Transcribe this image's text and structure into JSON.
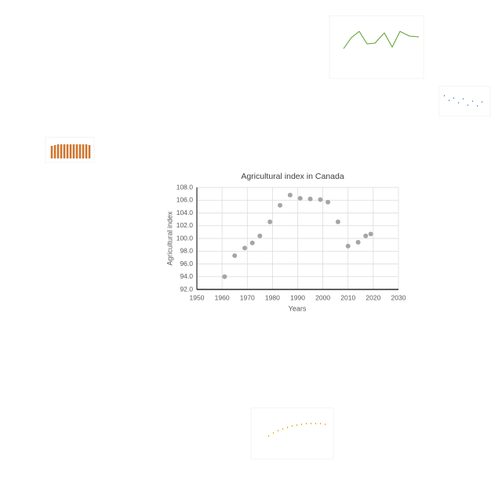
{
  "chart_data": {
    "type": "scatter",
    "title": "Agricultural index in Canada",
    "x_label": "Years",
    "y_label": "Agricultural index",
    "x": [
      1961,
      1965,
      1969,
      1972,
      1975,
      1979,
      1983,
      1987,
      1991,
      1995,
      1999,
      2002,
      2006,
      2010,
      2014,
      2017,
      2019
    ],
    "values": [
      94.0,
      97.3,
      98.5,
      99.3,
      100.4,
      102.6,
      105.2,
      106.8,
      106.3,
      106.2,
      106.1,
      105.7,
      102.6,
      98.8,
      99.4,
      100.4,
      100.7
    ],
    "color": "#a5a5a5",
    "xlim": [
      1950,
      2030
    ],
    "xticks": [
      1950,
      1960,
      1970,
      1980,
      1990,
      2000,
      2010,
      2020,
      2030
    ],
    "ylim": [
      92,
      108
    ],
    "yticks": [
      {
        "value": 92,
        "label": "92.0"
      },
      {
        "value": 94,
        "label": "94.0"
      },
      {
        "value": 96,
        "label": "96.0"
      },
      {
        "value": 98,
        "label": "98.0"
      },
      {
        "value": 100,
        "label": "100.0"
      },
      {
        "value": 102,
        "label": "102.0"
      },
      {
        "value": 104,
        "label": "104.0"
      },
      {
        "value": 106,
        "label": "106.0"
      },
      {
        "value": 108,
        "label": "108.0"
      }
    ],
    "grid": true
  }
}
